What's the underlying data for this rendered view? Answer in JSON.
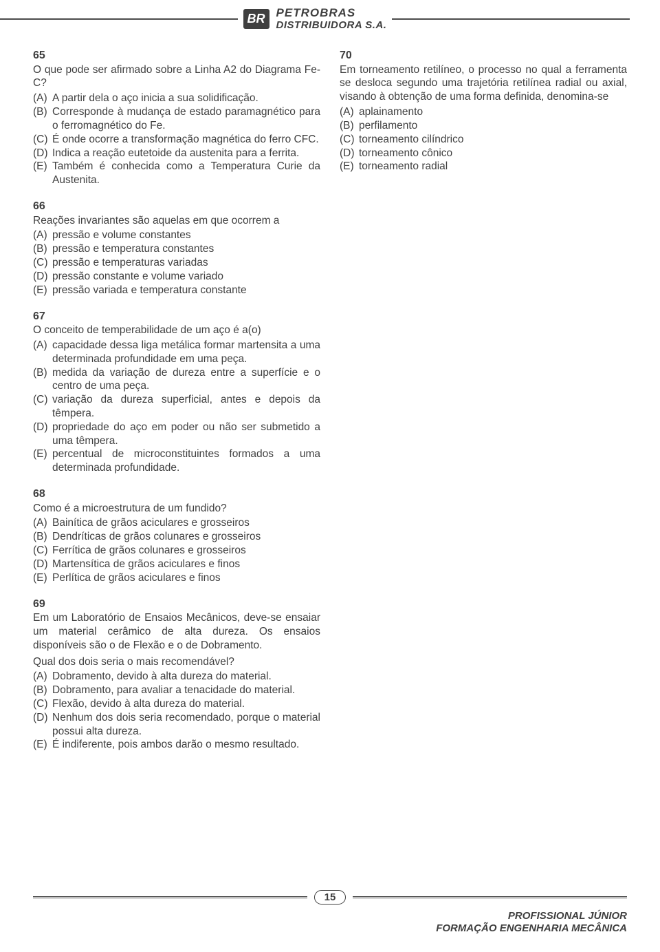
{
  "header": {
    "logo_text": "BR",
    "company_top": "PETROBRAS",
    "company_bottom": "DISTRIBUIDORA S.A."
  },
  "left": {
    "q65": {
      "num": "65",
      "text": "O que pode ser afirmado sobre a Linha A2 do Diagrama Fe-C?",
      "A": "A partir dela o aço inicia a sua solidificação.",
      "B": "Corresponde à mudança de estado paramagnético para o ferromagnético do Fe.",
      "C": "É onde ocorre a transformação magnética do ferro CFC.",
      "D": "Indica a reação eutetoide da austenita para a ferrita.",
      "E": "Também é conhecida como a Temperatura Curie da Austenita."
    },
    "q66": {
      "num": "66",
      "text": "Reações invariantes são aquelas em que ocorrem a",
      "A": "pressão e volume constantes",
      "B": "pressão e temperatura constantes",
      "C": "pressão e temperaturas variadas",
      "D": "pressão constante e volume variado",
      "E": "pressão variada e temperatura constante"
    },
    "q67": {
      "num": "67",
      "text": "O conceito de temperabilidade de um aço é a(o)",
      "A": "capacidade dessa liga metálica formar martensita a uma determinada profundidade em uma peça.",
      "B": "medida da variação de dureza entre a superfície e o centro de uma peça.",
      "C": "variação da dureza superficial, antes e depois da têmpera.",
      "D": "propriedade do aço em poder ou não ser submetido a uma têmpera.",
      "E": "percentual de microconstituintes formados a uma determinada profundidade."
    },
    "q68": {
      "num": "68",
      "text": "Como é a microestrutura de um fundido?",
      "A": "Bainítica de grãos aciculares e grosseiros",
      "B": "Dendríticas de grãos colunares e grosseiros",
      "C": "Ferrítica de grãos colunares e grosseiros",
      "D": "Martensítica de grãos aciculares e finos",
      "E": "Perlítica de grãos aciculares e finos"
    },
    "q69": {
      "num": "69",
      "text": "Em um Laboratório de Ensaios Mecânicos, deve-se ensaiar um material cerâmico de alta dureza. Os ensaios disponíveis são o de Flexão e o de Dobramento.",
      "sub": "Qual dos dois seria o mais recomendável?",
      "A": "Dobramento, devido à alta dureza do material.",
      "B": "Dobramento, para avaliar a tenacidade do material.",
      "C": "Flexão, devido à alta dureza do material.",
      "D": "Nenhum dos dois seria recomendado, porque o material possui alta dureza.",
      "E": "É indiferente, pois ambos darão o mesmo resultado."
    }
  },
  "right": {
    "q70": {
      "num": "70",
      "text": "Em torneamento retilíneo, o processo no qual a ferramenta se desloca segundo uma trajetória retilínea radial ou axial, visando à obtenção de uma forma definida, denomina-se",
      "A": "aplainamento",
      "B": "perfilamento",
      "C": "torneamento cilíndrico",
      "D": "torneamento cônico",
      "E": "torneamento radial"
    }
  },
  "footer": {
    "page": "15",
    "job1": "PROFISSIONAL JÚNIOR",
    "job2": "FORMAÇÃO ENGENHARIA MECÂNICA"
  }
}
